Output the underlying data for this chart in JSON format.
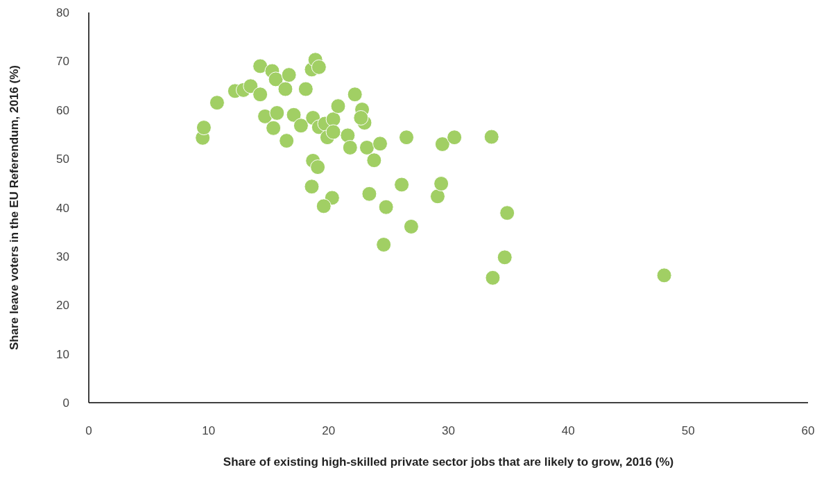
{
  "chart_data": {
    "type": "scatter",
    "xlabel": "Share of existing high-skilled private sector jobs that are likely to grow, 2016 (%)",
    "ylabel": "Share leave voters in the EU Referendum, 2016 (%)",
    "xlim": [
      0,
      60
    ],
    "xticks": [
      0,
      10,
      20,
      30,
      40,
      50,
      60
    ],
    "ylim": [
      0,
      80
    ],
    "yticks": [
      0,
      10,
      20,
      30,
      40,
      50,
      60,
      70,
      80
    ],
    "grid": false,
    "marker": "circle",
    "series": [
      {
        "color": "#a1cf64",
        "x": [
          9.5,
          9.6,
          10.7,
          12.2,
          12.9,
          13.5,
          14.3,
          14.3,
          14.7,
          15.3,
          15.6,
          15.4,
          15.7,
          16.4,
          16.7,
          16.5,
          17.1,
          17.7,
          18.1,
          18.6,
          18.9,
          19.2,
          18.7,
          18.7,
          19.1,
          18.6,
          19.2,
          19.7,
          19.9,
          20.4,
          20.4,
          20.3,
          19.6,
          20.8,
          21.6,
          21.8,
          22.2,
          22.8,
          23.0,
          22.7,
          23.2,
          23.8,
          24.3,
          23.4,
          24.8,
          24.6,
          26.1,
          26.5,
          26.9,
          29.1,
          29.4,
          29.5,
          30.5,
          33.6,
          33.7,
          34.7,
          34.9,
          48.0
        ],
        "values": [
          54.3,
          56.4,
          61.5,
          63.9,
          64.1,
          64.9,
          69.0,
          63.2,
          58.7,
          68.0,
          66.3,
          56.3,
          59.4,
          64.3,
          67.2,
          53.7,
          59.0,
          56.8,
          64.3,
          68.3,
          70.3,
          68.8,
          58.4,
          49.6,
          48.3,
          44.3,
          56.5,
          57.2,
          54.4,
          58.1,
          55.5,
          42.0,
          40.3,
          60.8,
          54.8,
          52.3,
          63.2,
          60.1,
          57.4,
          58.4,
          52.3,
          49.7,
          53.1,
          42.8,
          40.1,
          32.4,
          44.7,
          54.4,
          36.1,
          42.3,
          44.9,
          53.0,
          54.4,
          54.5,
          25.6,
          29.8,
          38.9,
          26.1
        ]
      }
    ]
  }
}
